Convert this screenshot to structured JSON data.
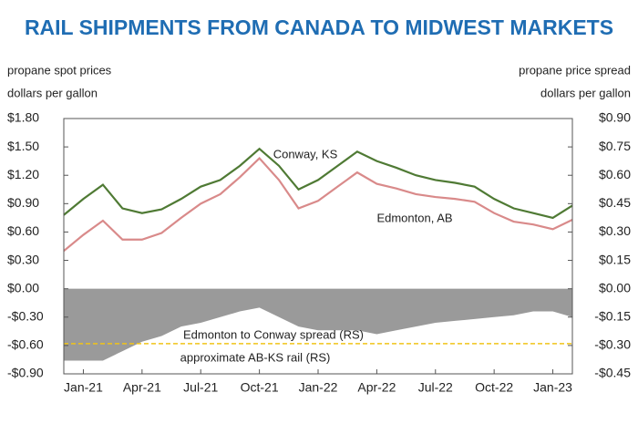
{
  "chart_data": {
    "type": "line",
    "title": "RAIL SHIPMENTS FROM CANADA TO MIDWEST MARKETS",
    "y_label": [
      "propane spot prices",
      "dollars per gallon"
    ],
    "y2_label": [
      "propane price spread",
      "dollars per gallon"
    ],
    "x": [
      "2020-12",
      "2021-01",
      "2021-02",
      "2021-03",
      "2021-04",
      "2021-05",
      "2021-06",
      "2021-07",
      "2021-08",
      "2021-09",
      "2021-10",
      "2021-11",
      "2021-12",
      "2022-01",
      "2022-02",
      "2022-03",
      "2022-04",
      "2022-05",
      "2022-06",
      "2022-07",
      "2022-08",
      "2022-09",
      "2022-10",
      "2022-11",
      "2022-12",
      "2023-01",
      "2023-02"
    ],
    "xlim": [
      "2020-12",
      "2023-02"
    ],
    "xticks": [
      {
        "value": "2021-01",
        "label": "Jan-21"
      },
      {
        "value": "2021-04",
        "label": "Apr-21"
      },
      {
        "value": "2021-07",
        "label": "Jul-21"
      },
      {
        "value": "2021-10",
        "label": "Oct-21"
      },
      {
        "value": "2022-01",
        "label": "Jan-22"
      },
      {
        "value": "2022-04",
        "label": "Apr-22"
      },
      {
        "value": "2022-07",
        "label": "Jul-22"
      },
      {
        "value": "2022-10",
        "label": "Oct-22"
      },
      {
        "value": "2023-01",
        "label": "Jan-23"
      }
    ],
    "ylim": [
      -0.9,
      1.8
    ],
    "yticks": [
      {
        "value": 1.8,
        "label": "$1.80"
      },
      {
        "value": 1.5,
        "label": "$1.50"
      },
      {
        "value": 1.2,
        "label": "$1.20"
      },
      {
        "value": 0.9,
        "label": "$0.90"
      },
      {
        "value": 0.6,
        "label": "$0.60"
      },
      {
        "value": 0.3,
        "label": "$0.30"
      },
      {
        "value": 0,
        "label": "$0.00"
      },
      {
        "value": -0.3,
        "label": "-$0.30"
      },
      {
        "value": -0.6,
        "label": "-$0.60"
      },
      {
        "value": -0.9,
        "label": "-$0.90"
      }
    ],
    "y2lim": [
      -0.45,
      0.9
    ],
    "y2ticks": [
      {
        "value": 0.9,
        "label": "$0.90"
      },
      {
        "value": 0.75,
        "label": "$0.75"
      },
      {
        "value": 0.6,
        "label": "$0.60"
      },
      {
        "value": 0.45,
        "label": "$0.45"
      },
      {
        "value": 0.3,
        "label": "$0.30"
      },
      {
        "value": 0.15,
        "label": "$0.15"
      },
      {
        "value": 0,
        "label": "$0.00"
      },
      {
        "value": -0.15,
        "label": "-$0.15"
      },
      {
        "value": -0.3,
        "label": "-$0.30"
      },
      {
        "value": -0.45,
        "label": "-$0.45"
      }
    ],
    "series": [
      {
        "name": "Conway, KS",
        "color": "#4f7a34",
        "values": [
          0.78,
          0.95,
          1.1,
          0.85,
          0.8,
          0.84,
          0.95,
          1.08,
          1.15,
          1.3,
          1.48,
          1.3,
          1.05,
          1.15,
          1.3,
          1.45,
          1.35,
          1.28,
          1.2,
          1.15,
          1.12,
          1.08,
          0.95,
          0.85,
          0.8,
          0.75,
          0.88
        ]
      },
      {
        "name": "Edmonton, AB",
        "color": "#d98a8a",
        "values": [
          0.4,
          0.57,
          0.72,
          0.52,
          0.52,
          0.59,
          0.75,
          0.9,
          1.0,
          1.18,
          1.38,
          1.15,
          0.85,
          0.93,
          1.08,
          1.23,
          1.11,
          1.06,
          1.0,
          0.97,
          0.95,
          0.92,
          0.8,
          0.71,
          0.68,
          0.63,
          0.73
        ]
      },
      {
        "name": "Edmonton to Conway spread (RS)",
        "color": "#9a9a9a",
        "axis": "y2",
        "kind": "area",
        "values": [
          -0.38,
          -0.38,
          -0.38,
          -0.33,
          -0.28,
          -0.25,
          -0.2,
          -0.18,
          -0.15,
          -0.12,
          -0.1,
          -0.15,
          -0.2,
          -0.22,
          -0.22,
          -0.22,
          -0.24,
          -0.22,
          -0.2,
          -0.18,
          -0.17,
          -0.16,
          -0.15,
          -0.14,
          -0.12,
          -0.12,
          -0.15
        ]
      }
    ],
    "reference_lines": [
      {
        "label": "approximate AB-KS rail (RS)",
        "value": -0.29,
        "axis": "y2",
        "color": "#f0c419"
      }
    ]
  }
}
